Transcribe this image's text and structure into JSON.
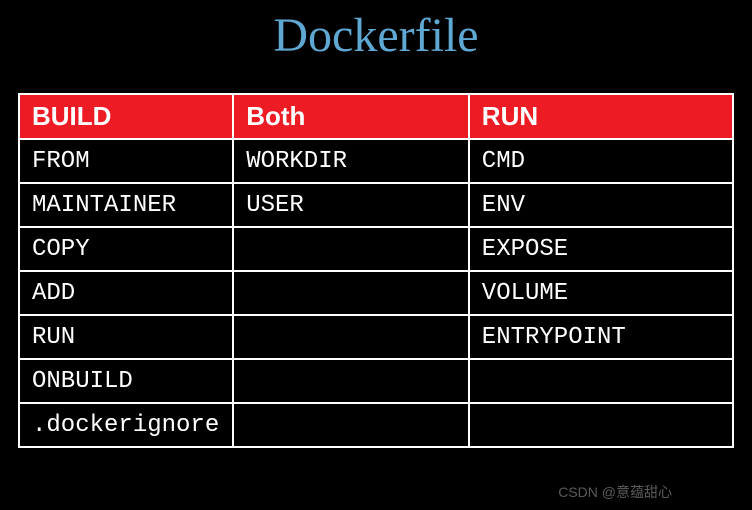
{
  "title": "Dockerfile",
  "table": {
    "columns": [
      "BUILD",
      "Both",
      "RUN"
    ],
    "rows": [
      [
        "FROM",
        "WORKDIR",
        "CMD"
      ],
      [
        "MAINTAINER",
        "USER",
        "ENV"
      ],
      [
        "COPY",
        "",
        "EXPOSE"
      ],
      [
        "ADD",
        "",
        "VOLUME"
      ],
      [
        "RUN",
        "",
        "ENTRYPOINT"
      ],
      [
        "ONBUILD",
        "",
        ""
      ],
      [
        ".dockerignore",
        "",
        ""
      ]
    ],
    "header_bg_color": "#ed1c24",
    "header_text_color": "#ffffff",
    "cell_text_color": "#ffffff",
    "border_color": "#ffffff",
    "background_color": "#000000",
    "title_color": "#5fa8d3",
    "title_fontsize": 48,
    "header_fontsize": 26,
    "cell_fontsize": 24,
    "column_widths": [
      "30%",
      "33%",
      "37%"
    ]
  },
  "watermark": "CSDN @意蕴甜心"
}
